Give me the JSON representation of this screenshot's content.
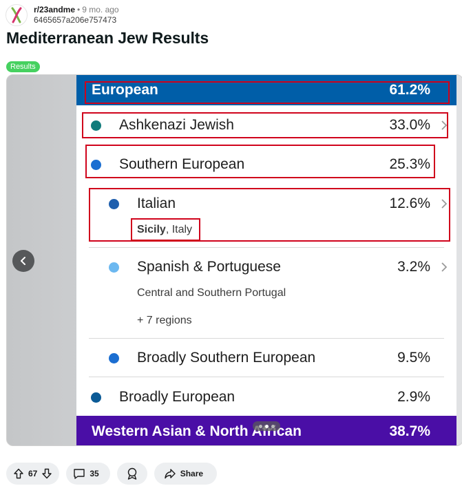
{
  "post": {
    "subreddit": "r/23andme",
    "separator": "•",
    "time_ago": "9 mo. ago",
    "username": "6465657a206e757473",
    "title": "Mediterranean Jew Results",
    "flair": "Results"
  },
  "screenshot": {
    "european": {
      "label": "European",
      "percent": "61.2%"
    },
    "items": [
      {
        "label": "Ashkenazi Jewish",
        "percent": "33.0%"
      },
      {
        "label": "Southern European",
        "percent": "25.3%"
      },
      {
        "label": "Italian",
        "percent": "12.6%",
        "sub_bold": "Sicily",
        "sub_rest": ", Italy"
      },
      {
        "label": "Spanish & Portuguese",
        "percent": "3.2%",
        "sub": "Central and Southern Portugal",
        "more": "+ 7 regions"
      },
      {
        "label": "Broadly Southern European",
        "percent": "9.5%"
      },
      {
        "label": "Broadly European",
        "percent": "2.9%"
      }
    ],
    "western": {
      "label": "Western Asian & North African",
      "percent": "38.7%"
    }
  },
  "colors": {
    "european_header": "#005ea8",
    "western_header": "#4a0ea6",
    "ashkenazi": "#117b7b",
    "southern": "#1b6ed1",
    "italian": "#1f5fad",
    "spanish": "#6cb8f0",
    "broadly_southern": "#1b6ed1",
    "broadly_european": "#0b5a96",
    "highlight_box": "#d0021b",
    "flair": "#46d160"
  },
  "actions": {
    "upvotes": "67",
    "comments": "35",
    "share": "Share"
  }
}
